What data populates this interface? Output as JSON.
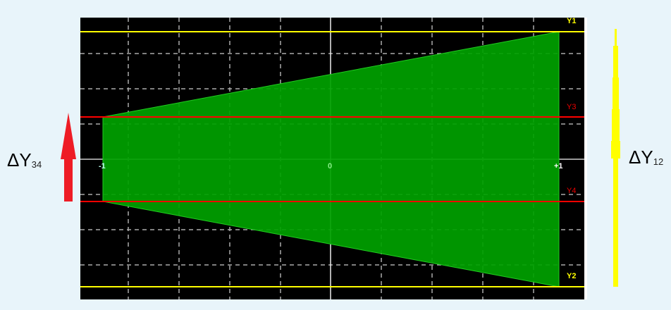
{
  "scope": {
    "x_labels": {
      "left": "-1",
      "center": "0",
      "right": "+1"
    },
    "lines": {
      "y1": "Y1",
      "y2": "Y2",
      "y3": "Y3",
      "y4": "Y4"
    },
    "colors": {
      "background": "#000000",
      "y12": "#ffff00",
      "y34": "#ff0000",
      "fill": "#009900",
      "grid": "#aaaaaa"
    }
  },
  "annotations": {
    "dy34": {
      "symbol": "ΔY",
      "sub": "34",
      "arrow_color": "#ee1c25"
    },
    "dy12": {
      "symbol": "ΔY",
      "sub": "12",
      "arrow_color": "#ffff00"
    }
  }
}
